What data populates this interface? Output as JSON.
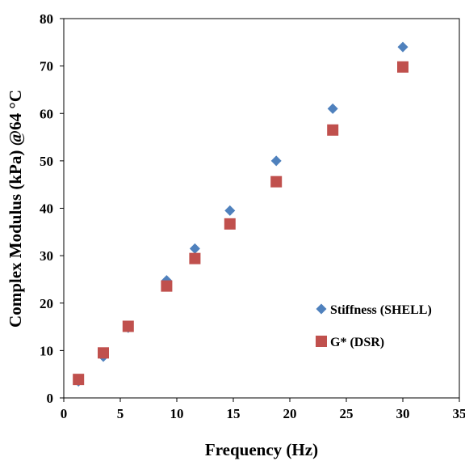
{
  "chart_data": {
    "type": "scatter",
    "xlabel": "Frequency (Hz)",
    "ylabel": "Complex Modulus (kPa) @64 °C",
    "xlim": [
      0,
      35
    ],
    "ylim": [
      0,
      80
    ],
    "x_ticks": [
      "0",
      "5",
      "10",
      "15",
      "20",
      "25",
      "30",
      "35"
    ],
    "y_ticks": [
      "0",
      "10",
      "20",
      "30",
      "40",
      "50",
      "60",
      "70",
      "80"
    ],
    "grid": false,
    "legend_position": "bottom-right",
    "series": [
      {
        "name": "Stiffness (SHELL)",
        "marker": "diamond",
        "color": "#4f81bd",
        "x": [
          1.3,
          3.5,
          5.7,
          9.1,
          11.6,
          14.7,
          18.8,
          23.8,
          30.0
        ],
        "y": [
          3.5,
          8.7,
          14.8,
          24.8,
          31.5,
          39.5,
          50.0,
          61.0,
          74.0
        ]
      },
      {
        "name": "G* (DSR)",
        "marker": "square",
        "color": "#c0504d",
        "x": [
          1.3,
          3.5,
          5.7,
          9.1,
          11.6,
          14.7,
          18.8,
          23.8,
          30.0
        ],
        "y": [
          3.9,
          9.5,
          15.1,
          23.6,
          29.4,
          36.7,
          45.6,
          56.5,
          69.8
        ]
      }
    ]
  }
}
